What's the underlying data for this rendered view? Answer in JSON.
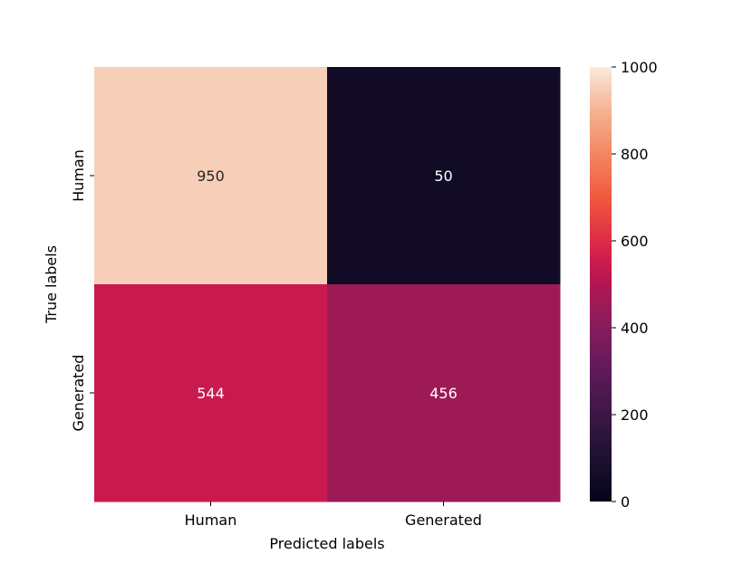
{
  "chart_data": {
    "type": "heatmap",
    "title": "",
    "xlabel": "Predicted labels",
    "ylabel": "True labels",
    "x_categories": [
      "Human",
      "Generated"
    ],
    "y_categories": [
      "Human",
      "Generated"
    ],
    "values": [
      [
        950,
        50
      ],
      [
        544,
        456
      ]
    ],
    "colorbar": {
      "vmin": 0,
      "vmax": 1000,
      "ticks": [
        0,
        200,
        400,
        600,
        800,
        1000
      ],
      "colormap": "rocket"
    },
    "annotations": true,
    "grid": false
  }
}
